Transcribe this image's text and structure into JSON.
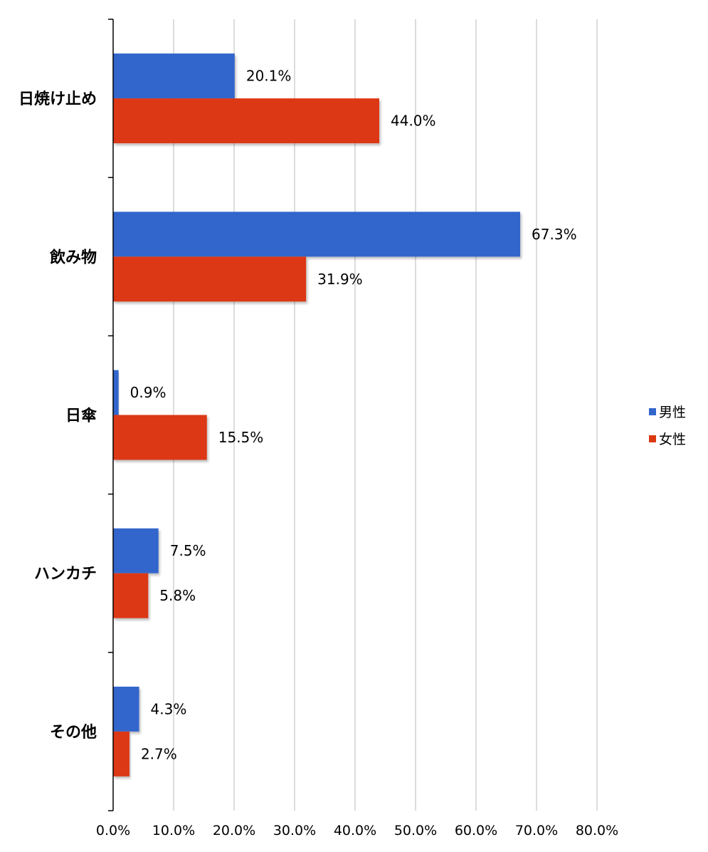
{
  "chart_data": {
    "type": "bar",
    "orientation": "horizontal",
    "categories": [
      "日焼け止め",
      "飲み物",
      "日傘",
      "ハンカチ",
      "その他"
    ],
    "series": [
      {
        "name": "男性",
        "values": [
          20.1,
          67.3,
          0.9,
          7.5,
          4.3
        ],
        "labels": [
          "20.1%",
          "67.3%",
          "0.9%",
          "7.5%",
          "4.3%"
        ],
        "color": "#3366cc"
      },
      {
        "name": "女性",
        "values": [
          44.0,
          31.9,
          15.5,
          5.8,
          2.7
        ],
        "labels": [
          "44.0%",
          "31.9%",
          "15.5%",
          "5.8%",
          "2.7%"
        ],
        "color": "#dc3912"
      }
    ],
    "x_ticks": [
      "0.0%",
      "10.0%",
      "20.0%",
      "30.0%",
      "40.0%",
      "50.0%",
      "60.0%",
      "70.0%",
      "80.0%"
    ],
    "xlim": [
      0,
      80
    ],
    "grid": true,
    "legend_position": "right"
  }
}
